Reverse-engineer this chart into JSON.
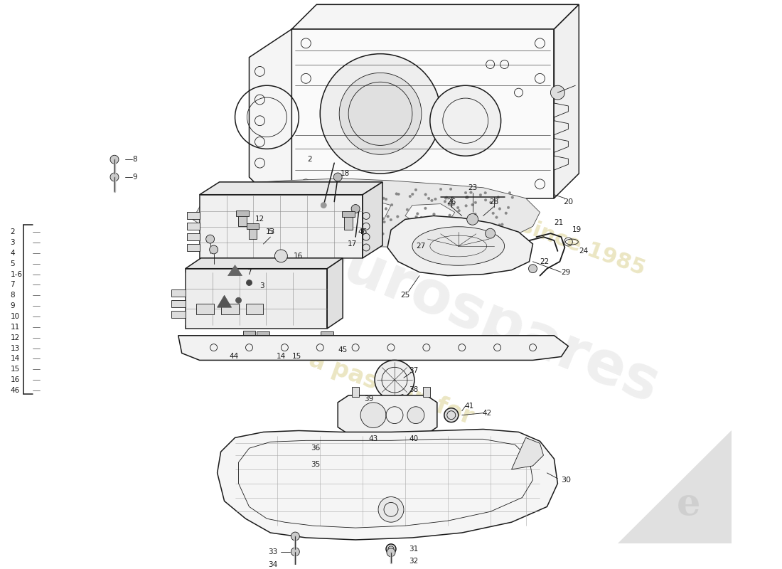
{
  "background_color": "#ffffff",
  "line_color": "#1a1a1a",
  "watermark_color_main": "#c8c8c8",
  "watermark_color_sub": "#d4c87a",
  "figsize": [
    11.0,
    8.0
  ],
  "dpi": 100,
  "left_labels": [
    [
      0.13,
      4.72,
      "2"
    ],
    [
      0.13,
      4.57,
      "3"
    ],
    [
      0.13,
      4.42,
      "4"
    ],
    [
      0.13,
      4.27,
      "5"
    ],
    [
      0.13,
      4.12,
      "1-6"
    ],
    [
      0.13,
      3.97,
      "7"
    ],
    [
      0.13,
      3.82,
      "8"
    ],
    [
      0.13,
      3.67,
      "9"
    ],
    [
      0.13,
      3.52,
      "10"
    ],
    [
      0.13,
      3.37,
      "11"
    ],
    [
      0.13,
      3.22,
      "12"
    ],
    [
      0.13,
      3.07,
      "13"
    ],
    [
      0.13,
      2.92,
      "14"
    ],
    [
      0.13,
      2.77,
      "15"
    ],
    [
      0.13,
      2.62,
      "16"
    ],
    [
      0.13,
      2.47,
      "46"
    ]
  ]
}
